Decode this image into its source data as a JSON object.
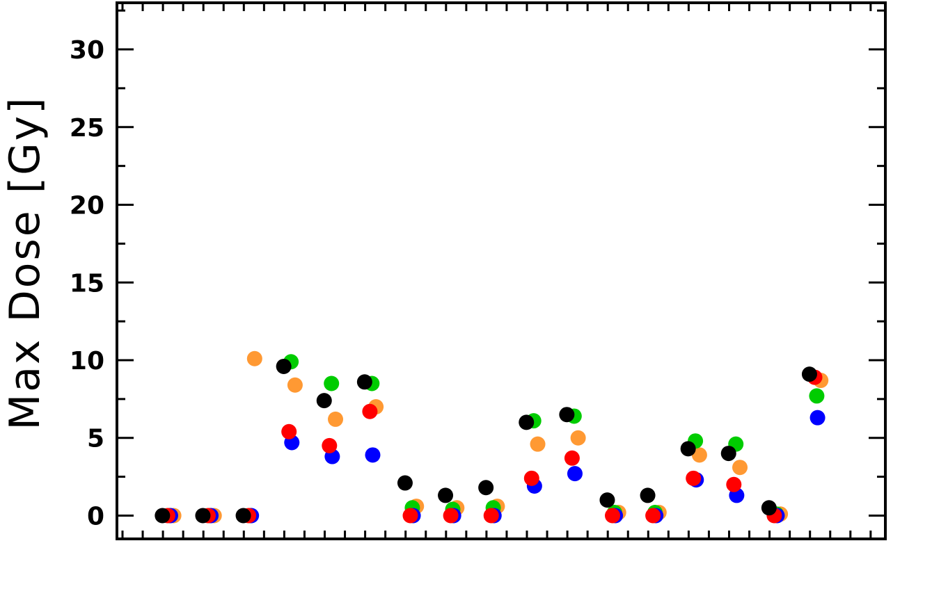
{
  "chart_data": {
    "type": "scatter",
    "ylabel": "Max Dose  [Gy]",
    "xlabel": "",
    "title": "",
    "ylim": [
      -1.5,
      33
    ],
    "yticks": [
      0,
      5,
      10,
      15,
      20,
      25,
      30
    ],
    "y_minor_step": 2.5,
    "x_count": 17,
    "grid": false,
    "legend": "none",
    "series": [
      {
        "color": "#000000",
        "offset": -0.08,
        "values": [
          0,
          0,
          0,
          9.6,
          7.4,
          8.6,
          2.1,
          1.3,
          1.8,
          6.0,
          6.5,
          1.0,
          1.3,
          4.3,
          4.0,
          0.5,
          9.1
        ]
      },
      {
        "color": "#00cc00",
        "offset": 0.1,
        "values": [
          0,
          0,
          0,
          9.9,
          8.5,
          8.5,
          0.5,
          0.4,
          0.5,
          6.1,
          6.4,
          0.2,
          0.2,
          4.8,
          4.6,
          0.1,
          7.7
        ]
      },
      {
        "color": "#ff9933",
        "offset": 0.2,
        "values": [
          0,
          0,
          10.1,
          8.4,
          6.2,
          7.0,
          0.6,
          0.5,
          0.6,
          4.6,
          5.0,
          0.2,
          0.2,
          3.9,
          3.1,
          0.1,
          8.7
        ]
      },
      {
        "color": "#0000ff",
        "offset": 0.12,
        "values": [
          0,
          0,
          0,
          4.7,
          3.8,
          3.9,
          0,
          0,
          0,
          1.9,
          2.7,
          0,
          0,
          2.3,
          1.3,
          0,
          6.3
        ]
      },
      {
        "color": "#ff0000",
        "offset": 0.05,
        "values": [
          0,
          0,
          0,
          5.4,
          4.5,
          6.7,
          0,
          0,
          0,
          2.4,
          3.7,
          0,
          0,
          2.4,
          2.0,
          0,
          8.9
        ]
      }
    ]
  }
}
